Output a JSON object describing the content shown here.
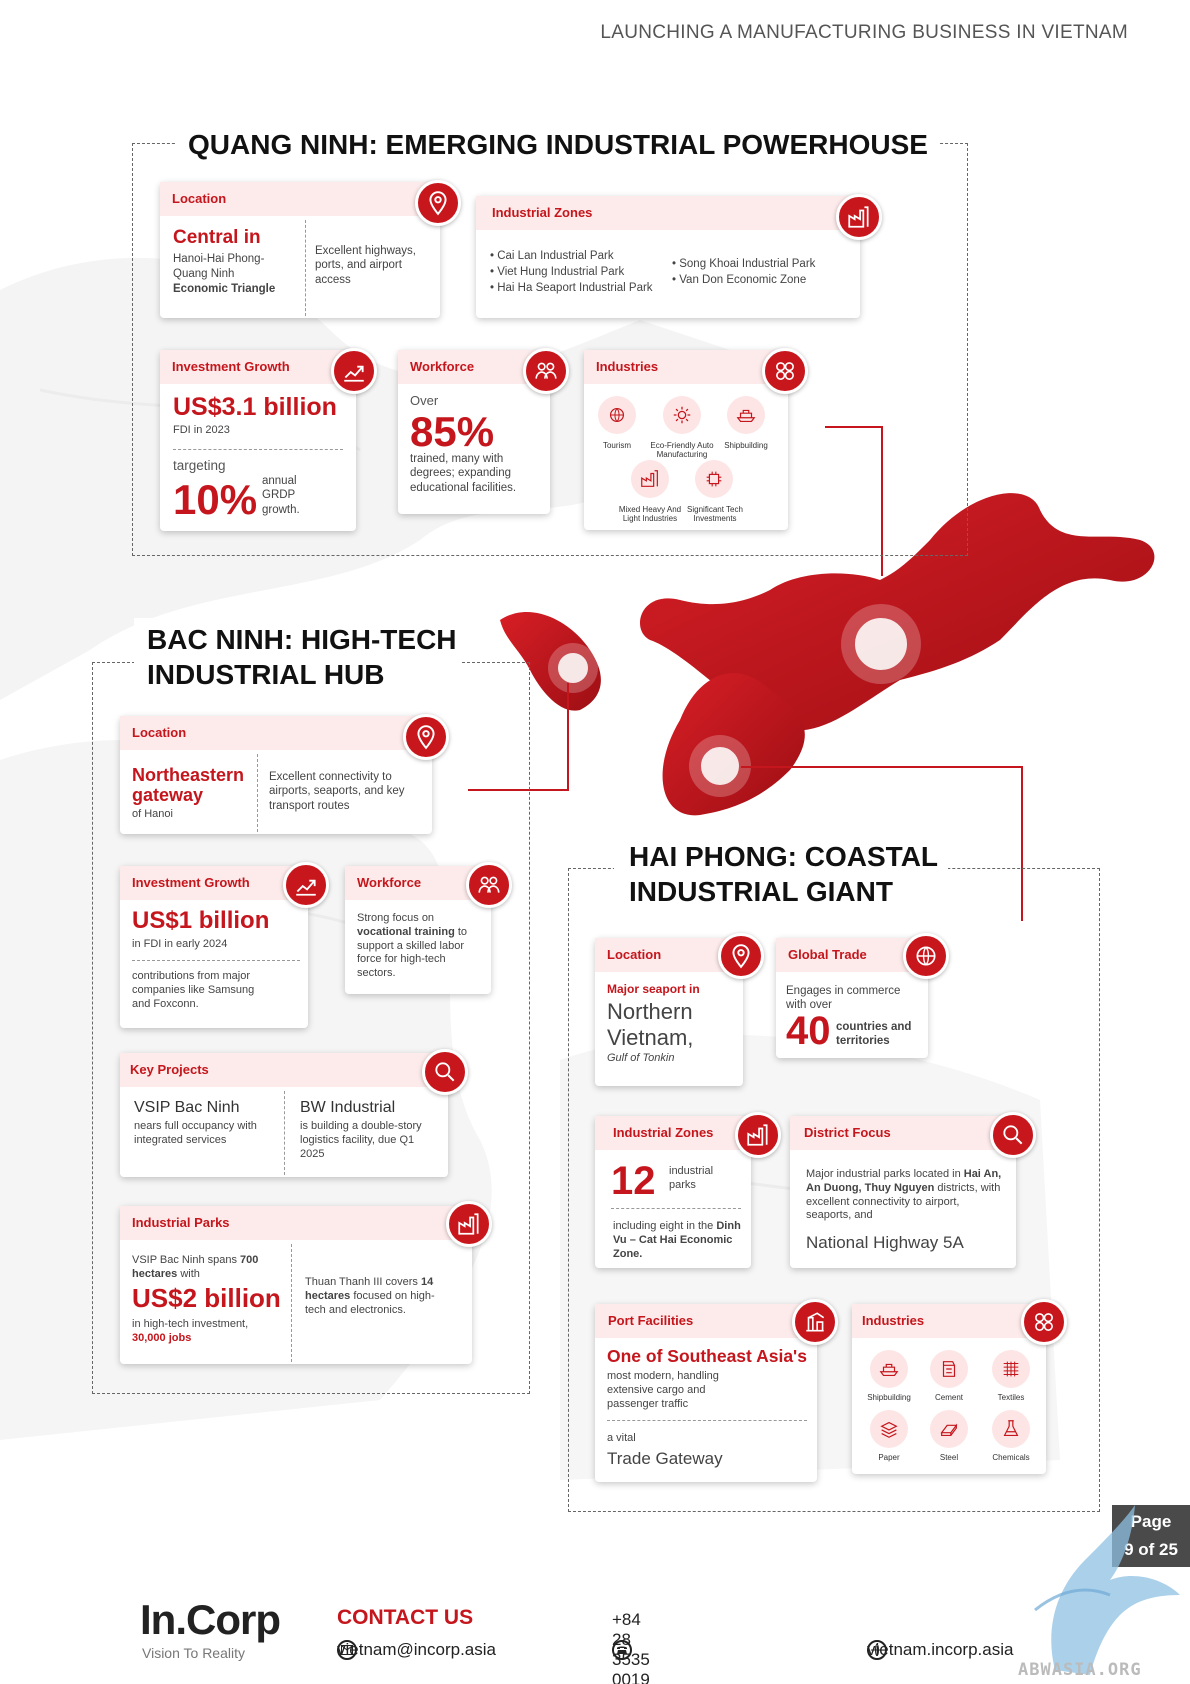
{
  "header": {
    "title": "LAUNCHING A MANUFACTURING BUSINESS IN VIETNAM"
  },
  "quang_ninh": {
    "title": "QUANG NINH: EMERGING INDUSTRIAL POWERHOUSE",
    "location": {
      "label": "Location",
      "headline": "Central in",
      "sub1": "Hanoi-Hai Phong-",
      "sub2": "Quang Ninh",
      "sub3": "Economic Triangle",
      "right": "Excellent highways, ports, and airport access"
    },
    "zones": {
      "label": "Industrial Zones",
      "left": [
        "Cai Lan Industrial Park",
        "Viet Hung Industrial Park",
        "Hai Ha Seaport Industrial Park"
      ],
      "right": [
        "Song Khoai Industrial Park",
        "Van Don Economic Zone"
      ]
    },
    "investment": {
      "label": "Investment Growth",
      "value": "US$3.1 billion",
      "sub": "FDI in 2023",
      "targeting": "targeting",
      "pct": "10%",
      "pct_note": "annual GRDP growth."
    },
    "workforce": {
      "label": "Workforce",
      "over": "Over",
      "pct": "85%",
      "note": "trained, many with degrees; expanding educational facilities."
    },
    "industries": {
      "label": "Industries",
      "items": [
        "Tourism",
        "Eco-Friendly Auto Manufacturing",
        "Shipbuilding",
        "Mixed Heavy And Light Industries",
        "Significant Tech Investments"
      ]
    }
  },
  "bac_ninh": {
    "title_line1": "BAC NINH: HIGH-TECH",
    "title_line2": "INDUSTRIAL HUB",
    "location": {
      "label": "Location",
      "headline1": "Northeastern",
      "headline2": "gateway",
      "sub": "of Hanoi",
      "right": "Excellent connectivity to airports, seaports, and key transport routes"
    },
    "investment": {
      "label": "Investment Growth",
      "value": "US$1 billion",
      "sub": "in FDI in early 2024",
      "note": "contributions from major companies like Samsung and Foxconn."
    },
    "workforce": {
      "label": "Workforce",
      "pre": "Strong focus on",
      "bold": "vocational training",
      "post": "to support a skilled labor force for high-tech sectors."
    },
    "projects": {
      "label": "Key Projects",
      "p1_title": "VSIP Bac Ninh",
      "p1_text": "nears full occupancy with integrated services",
      "p2_title": "BW Industrial",
      "p2_text": "is building a double-story logistics facility, due Q1 2025"
    },
    "parks": {
      "label": "Industrial Parks",
      "l1": "VSIP Bac Ninh spans",
      "l1b": "700",
      "l2b": "hectares",
      "l2": "with",
      "value": "US$2 billion",
      "l3": "in high-tech investment,",
      "l4b": "30,000 jobs",
      "r1": "Thuan Thanh III covers",
      "r2b": "14 hectares",
      "r2": "focused on high-tech and electronics."
    }
  },
  "hai_phong": {
    "title_line1": "HAI PHONG: COASTAL",
    "title_line2": "INDUSTRIAL GIANT",
    "location": {
      "label": "Location",
      "pre": "Major seaport in",
      "big1": "Northern",
      "big2": "Vietnam,",
      "sub": "Gulf of Tonkin"
    },
    "trade": {
      "label": "Global Trade",
      "pre": "Engages in commerce with over",
      "num": "40",
      "note": "countries and territories"
    },
    "zones": {
      "label": "Industrial Zones",
      "num": "12",
      "num_note": "industrial parks",
      "pre": "including eight in the",
      "bold": "Dinh Vu – Cat Hai Economic Zone."
    },
    "district": {
      "label": "District Focus",
      "pre": "Major industrial parks located in",
      "bold": "Hai An, An Duong, Thuy Nguyen",
      "post": "districts, with excellent connectivity to airport, seaports, and",
      "big": "National Highway 5A"
    },
    "port": {
      "label": "Port Facilities",
      "headline": "One of Southeast Asia's",
      "sub": "most modern, handling extensive cargo and passenger traffic",
      "pre": "a vital",
      "big": "Trade Gateway"
    },
    "industries": {
      "label": "Industries",
      "items": [
        "Shipbuilding",
        "Cement",
        "Textiles",
        "Paper",
        "Steel",
        "Chemicals"
      ]
    }
  },
  "footer": {
    "brand": "In.Corp",
    "tagline": "Vision To Reality",
    "contact": "CONTACT US",
    "email": "vietnam@incorp.asia",
    "phone": "+84 28 3535 0019",
    "web": "vietnam.incorp.asia",
    "page_label": "Page",
    "page_num": "9 of 25",
    "watermark": "ABWASIA.ORG"
  },
  "colors": {
    "accent": "#c4161c",
    "tint": "#fdeaea"
  }
}
